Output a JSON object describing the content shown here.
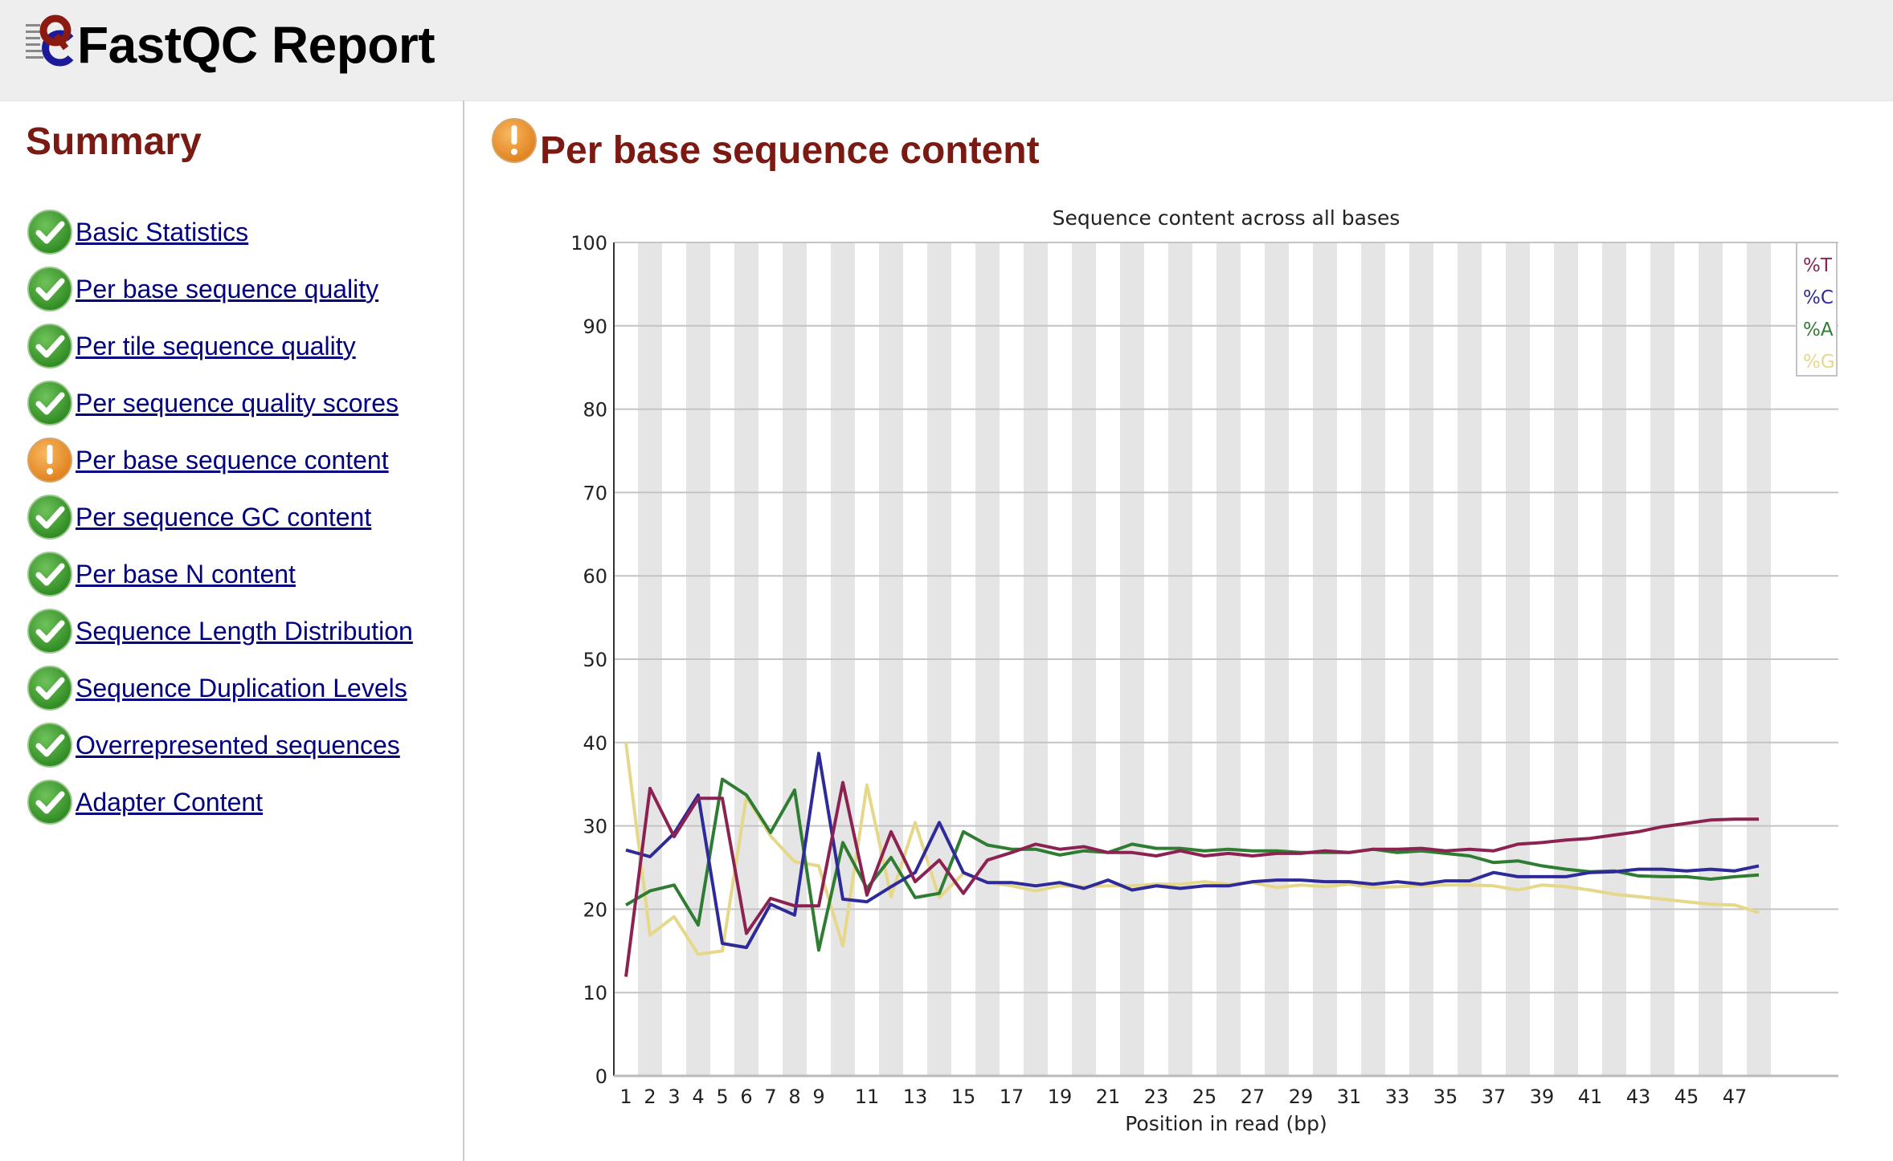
{
  "header": {
    "title": "FastQC Report",
    "logo_icon": "fastqc-logo-icon"
  },
  "sidebar": {
    "title": "Summary",
    "items": [
      {
        "label": "Basic Statistics",
        "status": "pass",
        "icon": "check-icon"
      },
      {
        "label": "Per base sequence quality",
        "status": "pass",
        "icon": "check-icon"
      },
      {
        "label": "Per tile sequence quality",
        "status": "pass",
        "icon": "check-icon"
      },
      {
        "label": "Per sequence quality scores",
        "status": "pass",
        "icon": "check-icon"
      },
      {
        "label": "Per base sequence content",
        "status": "warn",
        "icon": "warning-icon"
      },
      {
        "label": "Per sequence GC content",
        "status": "pass",
        "icon": "check-icon"
      },
      {
        "label": "Per base N content",
        "status": "pass",
        "icon": "check-icon"
      },
      {
        "label": "Sequence Length Distribution",
        "status": "pass",
        "icon": "check-icon"
      },
      {
        "label": "Sequence Duplication Levels",
        "status": "pass",
        "icon": "check-icon"
      },
      {
        "label": "Overrepresented sequences",
        "status": "pass",
        "icon": "check-icon"
      },
      {
        "label": "Adapter Content",
        "status": "pass",
        "icon": "check-icon"
      }
    ]
  },
  "main": {
    "title": "Per base sequence content",
    "status": "warn"
  },
  "colors": {
    "title_red": "#7a1a12",
    "link_blue": "#000080",
    "pass_green": "#3f9a2c",
    "warn_orange": "#f09a2e",
    "T": "#8b2252",
    "C": "#2e2a9a",
    "A": "#2e7d32",
    "G": "#e5d88a"
  },
  "chart_data": {
    "type": "line",
    "title": "Sequence content across all bases",
    "xlabel": "Position in read (bp)",
    "ylabel": "",
    "ylim": [
      0,
      100
    ],
    "yticks": [
      0,
      10,
      20,
      30,
      40,
      50,
      60,
      70,
      80,
      90,
      100
    ],
    "xtick_labels": [
      "1",
      "2",
      "3",
      "4",
      "5",
      "6",
      "7",
      "8",
      "9",
      "11",
      "13",
      "15",
      "17",
      "19",
      "21",
      "23",
      "25",
      "27",
      "29",
      "31",
      "33",
      "35",
      "37",
      "39",
      "41",
      "43",
      "45",
      "47"
    ],
    "grid": true,
    "alternating_bands": true,
    "legend_position": "top-right",
    "x": [
      1,
      2,
      3,
      4,
      5,
      6,
      7,
      8,
      9,
      10,
      11,
      12,
      13,
      14,
      15,
      16,
      17,
      18,
      19,
      20,
      21,
      22,
      23,
      24,
      25,
      26,
      27,
      28,
      29,
      30,
      31,
      32,
      33,
      34,
      35,
      36,
      37,
      38,
      39,
      40,
      41,
      42,
      43,
      44,
      45,
      46,
      47,
      48
    ],
    "series": [
      {
        "name": "%T",
        "color": "#8b2252",
        "values": [
          11.9,
          34.5,
          28.7,
          33.3,
          33.3,
          17.1,
          21.3,
          20.4,
          20.4,
          35.2,
          21.7,
          29.3,
          23.3,
          25.9,
          21.9,
          25.9,
          26.8,
          27.8,
          27.2,
          27.5,
          26.8,
          26.8,
          26.4,
          27.0,
          26.4,
          26.7,
          26.4,
          26.7,
          26.7,
          27.0,
          26.8,
          27.2,
          27.2,
          27.3,
          27.0,
          27.2,
          27.0,
          27.8,
          28.0,
          28.3,
          28.5,
          28.9,
          29.3,
          29.9,
          30.3,
          30.7,
          30.8,
          30.8
        ]
      },
      {
        "name": "%C",
        "color": "#2e2a9a",
        "values": [
          27.1,
          26.3,
          29.1,
          33.7,
          15.9,
          15.4,
          20.6,
          19.3,
          38.7,
          21.2,
          20.9,
          22.7,
          24.4,
          30.4,
          24.4,
          23.2,
          23.2,
          22.8,
          23.2,
          22.5,
          23.5,
          22.3,
          22.8,
          22.5,
          22.8,
          22.8,
          23.3,
          23.5,
          23.5,
          23.3,
          23.3,
          23.0,
          23.3,
          23.0,
          23.4,
          23.4,
          24.4,
          23.9,
          23.9,
          23.9,
          24.4,
          24.5,
          24.8,
          24.8,
          24.6,
          24.8,
          24.6,
          25.2
        ]
      },
      {
        "name": "%A",
        "color": "#2e7d32",
        "values": [
          20.5,
          22.2,
          22.9,
          18.1,
          35.6,
          33.7,
          29.2,
          34.3,
          15.1,
          28.0,
          22.5,
          26.2,
          21.4,
          21.9,
          29.3,
          27.7,
          27.2,
          27.2,
          26.5,
          27.0,
          26.8,
          27.8,
          27.3,
          27.3,
          27.0,
          27.2,
          27.0,
          27.0,
          26.8,
          26.8,
          26.8,
          27.2,
          26.8,
          27.0,
          26.7,
          26.4,
          25.6,
          25.8,
          25.2,
          24.8,
          24.5,
          24.6,
          24.0,
          23.9,
          23.9,
          23.6,
          23.9,
          24.1
        ]
      },
      {
        "name": "%G",
        "color": "#e5d88a",
        "values": [
          40.0,
          16.9,
          19.1,
          14.6,
          15.0,
          33.5,
          28.8,
          25.7,
          25.2,
          15.6,
          34.9,
          21.5,
          30.4,
          21.4,
          24.3,
          23.2,
          22.8,
          22.2,
          22.8,
          22.7,
          22.8,
          22.8,
          23.0,
          23.0,
          23.3,
          23.0,
          23.2,
          22.6,
          22.9,
          22.7,
          23.0,
          22.6,
          22.7,
          22.8,
          22.9,
          22.9,
          22.8,
          22.3,
          22.9,
          22.7,
          22.3,
          21.8,
          21.5,
          21.2,
          20.9,
          20.6,
          20.5,
          19.6
        ]
      }
    ]
  }
}
